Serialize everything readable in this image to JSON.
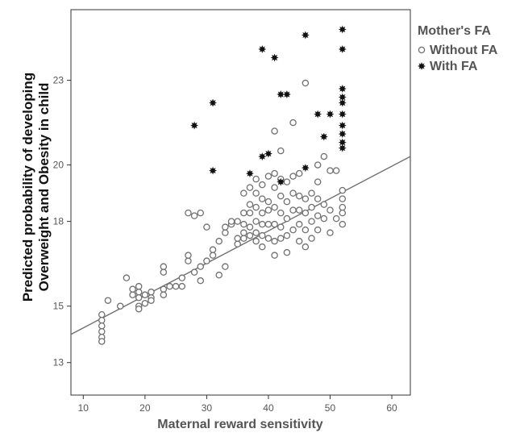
{
  "chart_data": {
    "type": "scatter",
    "xlabel": "Maternal reward sensitivity",
    "ylabel_lines": [
      "Predicted probability of developing",
      "Overweight and Obesity in child"
    ],
    "xlim": [
      8,
      63
    ],
    "ylim": [
      11.85,
      25.5
    ],
    "x_ticks": [
      10,
      20,
      30,
      40,
      50,
      60
    ],
    "y_ticks": [
      13,
      15,
      18,
      20,
      23
    ],
    "y_tick_labels": [
      "13",
      "15",
      "18",
      "20",
      "23"
    ],
    "grid": false,
    "legend": {
      "title": "Mother's FA",
      "placement": "outside-top-right",
      "entries": [
        "Without FA",
        "With FA"
      ]
    },
    "fit_line": {
      "x": [
        8,
        63
      ],
      "y": [
        14.0,
        20.3
      ]
    },
    "series": [
      {
        "name": "Without FA",
        "marker": "open-circle",
        "color": "#707070",
        "points": [
          [
            13,
            14.7
          ],
          [
            13,
            14.5
          ],
          [
            13,
            14.3
          ],
          [
            13,
            14.1
          ],
          [
            13,
            13.9
          ],
          [
            13,
            13.75
          ],
          [
            14,
            15.2
          ],
          [
            16,
            15.0
          ],
          [
            17,
            16.0
          ],
          [
            18,
            15.4
          ],
          [
            18,
            15.6
          ],
          [
            19,
            15.5
          ],
          [
            19,
            15.3
          ],
          [
            19,
            15.0
          ],
          [
            19,
            14.9
          ],
          [
            19,
            15.7
          ],
          [
            20,
            15.4
          ],
          [
            20,
            15.1
          ],
          [
            21,
            15.3
          ],
          [
            21,
            15.5
          ],
          [
            21,
            15.2
          ],
          [
            23,
            15.6
          ],
          [
            23,
            15.4
          ],
          [
            23,
            16.2
          ],
          [
            23,
            16.4
          ],
          [
            24,
            15.7
          ],
          [
            25,
            15.7
          ],
          [
            26,
            15.7
          ],
          [
            26,
            16.0
          ],
          [
            27,
            16.6
          ],
          [
            27,
            16.8
          ],
          [
            27,
            18.3
          ],
          [
            28,
            16.2
          ],
          [
            28,
            18.2
          ],
          [
            29,
            18.3
          ],
          [
            29,
            15.9
          ],
          [
            29,
            16.4
          ],
          [
            30,
            17.8
          ],
          [
            30,
            16.6
          ],
          [
            31,
            17.0
          ],
          [
            31,
            16.8
          ],
          [
            32,
            17.3
          ],
          [
            32,
            16.1
          ],
          [
            33,
            17.6
          ],
          [
            33,
            16.4
          ],
          [
            33,
            17.8
          ],
          [
            34,
            17.9
          ],
          [
            34,
            18.0
          ],
          [
            35,
            18.0
          ],
          [
            35,
            17.2
          ],
          [
            35,
            17.4
          ],
          [
            36,
            19.0
          ],
          [
            36,
            18.3
          ],
          [
            36,
            17.6
          ],
          [
            36,
            17.4
          ],
          [
            36,
            17.9
          ],
          [
            37,
            19.2
          ],
          [
            37,
            18.6
          ],
          [
            37,
            18.3
          ],
          [
            37,
            17.8
          ],
          [
            37,
            17.5
          ],
          [
            38,
            19.5
          ],
          [
            38,
            19.0
          ],
          [
            38,
            18.5
          ],
          [
            38,
            18.0
          ],
          [
            38,
            17.3
          ],
          [
            38,
            17.6
          ],
          [
            39,
            19.3
          ],
          [
            39,
            18.8
          ],
          [
            39,
            18.3
          ],
          [
            39,
            17.9
          ],
          [
            39,
            17.1
          ],
          [
            39,
            17.5
          ],
          [
            40,
            19.6
          ],
          [
            40,
            18.7
          ],
          [
            40,
            18.4
          ],
          [
            40,
            17.9
          ],
          [
            40,
            17.4
          ],
          [
            41,
            19.7
          ],
          [
            41,
            19.2
          ],
          [
            41,
            18.5
          ],
          [
            41,
            17.9
          ],
          [
            41,
            17.3
          ],
          [
            41,
            16.8
          ],
          [
            41,
            21.2
          ],
          [
            42,
            19.5
          ],
          [
            42,
            18.9
          ],
          [
            42,
            18.3
          ],
          [
            42,
            17.8
          ],
          [
            42,
            17.4
          ],
          [
            42,
            20.5
          ],
          [
            43,
            19.4
          ],
          [
            43,
            18.7
          ],
          [
            43,
            18.1
          ],
          [
            43,
            17.5
          ],
          [
            43,
            16.9
          ],
          [
            44,
            19.6
          ],
          [
            44,
            19.0
          ],
          [
            44,
            18.4
          ],
          [
            44,
            17.7
          ],
          [
            44,
            21.5
          ],
          [
            45,
            18.9
          ],
          [
            45,
            18.4
          ],
          [
            45,
            17.9
          ],
          [
            45,
            17.3
          ],
          [
            45,
            19.7
          ],
          [
            46,
            18.8
          ],
          [
            46,
            18.3
          ],
          [
            46,
            17.7
          ],
          [
            46,
            17.1
          ],
          [
            46,
            22.9
          ],
          [
            47,
            19.0
          ],
          [
            47,
            18.5
          ],
          [
            47,
            18.0
          ],
          [
            47,
            17.4
          ],
          [
            48,
            19.4
          ],
          [
            48,
            18.8
          ],
          [
            48,
            18.2
          ],
          [
            48,
            17.7
          ],
          [
            48,
            20.0
          ],
          [
            49,
            18.6
          ],
          [
            49,
            18.1
          ],
          [
            49,
            20.3
          ],
          [
            50,
            19.8
          ],
          [
            50,
            18.4
          ],
          [
            50,
            17.6
          ],
          [
            51,
            18.1
          ],
          [
            51,
            19.8
          ],
          [
            52,
            19.1
          ],
          [
            52,
            18.8
          ],
          [
            52,
            18.5
          ],
          [
            52,
            18.3
          ],
          [
            52,
            17.9
          ]
        ]
      },
      {
        "name": "With FA",
        "marker": "filled-star",
        "color": "#111111",
        "points": [
          [
            28,
            21.4
          ],
          [
            31,
            22.2
          ],
          [
            31,
            19.8
          ],
          [
            37,
            19.7
          ],
          [
            39,
            24.1
          ],
          [
            39,
            20.3
          ],
          [
            40,
            20.4
          ],
          [
            41,
            23.8
          ],
          [
            42,
            19.4
          ],
          [
            42,
            22.5
          ],
          [
            43,
            22.5
          ],
          [
            46,
            24.6
          ],
          [
            46,
            19.9
          ],
          [
            48,
            21.8
          ],
          [
            49,
            21.0
          ],
          [
            50,
            21.8
          ],
          [
            52,
            24.8
          ],
          [
            52,
            24.1
          ],
          [
            52,
            22.7
          ],
          [
            52,
            22.4
          ],
          [
            52,
            22.2
          ],
          [
            52,
            21.8
          ],
          [
            52,
            21.4
          ],
          [
            52,
            21.1
          ],
          [
            52,
            20.8
          ],
          [
            52,
            20.6
          ]
        ]
      }
    ]
  }
}
